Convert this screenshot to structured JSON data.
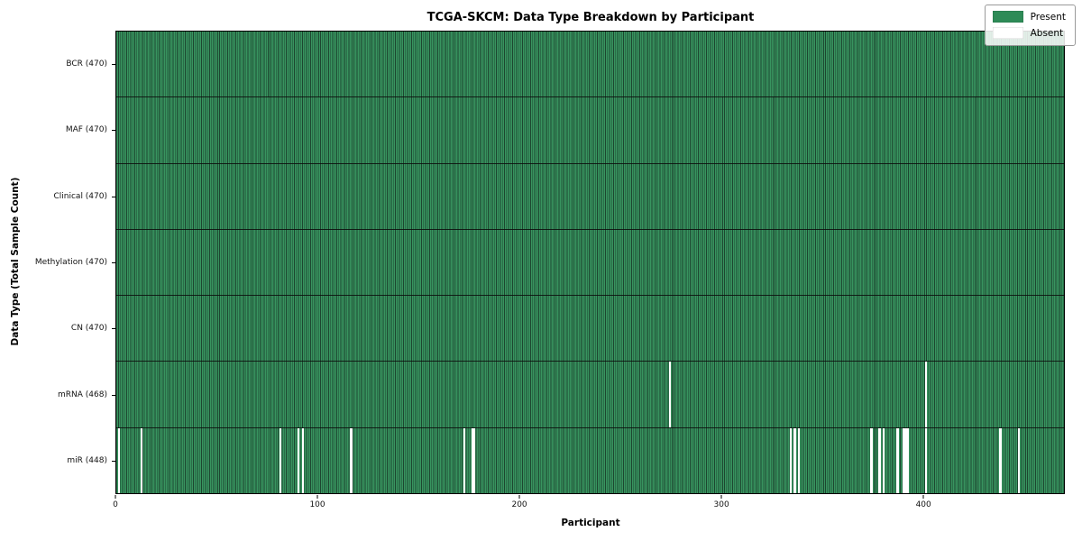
{
  "title": "TCGA-SKCM: Data Type Breakdown by Participant",
  "chart_data": {
    "type": "heatmap",
    "title": "TCGA-SKCM: Data Type Breakdown by Participant",
    "xlabel": "Participant",
    "ylabel": "Data Type (Total Sample Count)",
    "n_participants": 470,
    "xlim": [
      0,
      470
    ],
    "x_ticks": [
      0,
      100,
      200,
      300,
      400
    ],
    "grid": false,
    "legend_position": "upper right",
    "legend": [
      {
        "label": "Present",
        "color": "#2e8b57"
      },
      {
        "label": "Absent",
        "color": "#ffffff"
      }
    ],
    "colors": {
      "present": "#2e8b57",
      "absent": "#ffffff",
      "cell_edge": "#1d4630",
      "row_separator": "#0c0c0c",
      "spine": "#000000",
      "background": "#ffffff"
    },
    "rows": [
      {
        "key": "bcr",
        "label": "BCR (470)",
        "data_type": "BCR",
        "present_count": 470,
        "absent_participants": []
      },
      {
        "key": "maf",
        "label": "MAF (470)",
        "data_type": "MAF",
        "present_count": 470,
        "absent_participants": []
      },
      {
        "key": "clinical",
        "label": "Clinical (470)",
        "data_type": "Clinical",
        "present_count": 470,
        "absent_participants": []
      },
      {
        "key": "methylation",
        "label": "Methylation (470)",
        "data_type": "Methylation",
        "present_count": 470,
        "absent_participants": []
      },
      {
        "key": "cn",
        "label": "CN (470)",
        "data_type": "CN",
        "present_count": 470,
        "absent_participants": []
      },
      {
        "key": "mrna",
        "label": "mRNA (468)",
        "data_type": "mRNA",
        "present_count": 468,
        "absent_participants": [
          274,
          401
        ]
      },
      {
        "key": "mir",
        "label": "miR (448)",
        "data_type": "miR",
        "present_count": 448,
        "absent_participants": [
          1,
          12,
          81,
          90,
          92,
          116,
          172,
          176,
          177,
          334,
          336,
          338,
          374,
          378,
          380,
          387,
          390,
          391,
          392,
          401,
          438,
          447
        ]
      }
    ]
  }
}
